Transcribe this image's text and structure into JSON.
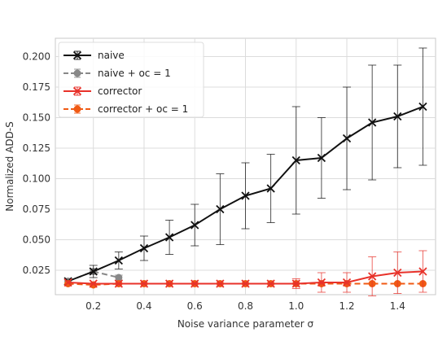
{
  "chart_data": {
    "type": "line",
    "title": "",
    "xlabel": "Noise variance parameter σ",
    "ylabel": "Normalized ADD-S",
    "xlim": [
      0.05,
      1.55
    ],
    "ylim": [
      0.005,
      0.215
    ],
    "xticks": [
      0.2,
      0.4,
      0.6,
      0.8,
      1.0,
      1.2,
      1.4
    ],
    "xtick_labels": [
      "0.2",
      "0.4",
      "0.6",
      "0.8",
      "1.0",
      "1.2",
      "1.4"
    ],
    "yticks": [
      0.025,
      0.05,
      0.075,
      0.1,
      0.125,
      0.15,
      0.175,
      0.2
    ],
    "ytick_labels": [
      "0.025",
      "0.050",
      "0.075",
      "0.100",
      "0.125",
      "0.150",
      "0.175",
      "0.200"
    ],
    "grid": true,
    "legend_position": "top-left",
    "series": [
      {
        "name": "naive",
        "color": "#111111",
        "linestyle": "solid",
        "marker": "x",
        "x": [
          0.1,
          0.2,
          0.3,
          0.4,
          0.5,
          0.6,
          0.7,
          0.8,
          0.9,
          1.0,
          1.1,
          1.2,
          1.3,
          1.4,
          1.5
        ],
        "y": [
          0.016,
          0.024,
          0.033,
          0.043,
          0.052,
          0.062,
          0.075,
          0.086,
          0.092,
          0.115,
          0.117,
          0.133,
          0.146,
          0.151,
          0.159
        ],
        "err": [
          0.0,
          0.005,
          0.007,
          0.01,
          0.014,
          0.017,
          0.029,
          0.027,
          0.028,
          0.044,
          0.033,
          0.042,
          0.047,
          0.042,
          0.048
        ]
      },
      {
        "name": "naive + oc = 1",
        "color": "#888888",
        "linestyle": "dashed",
        "marker": "o",
        "x": [
          0.1,
          0.2,
          0.3
        ],
        "y": [
          0.016,
          0.024,
          0.019
        ],
        "err": [
          0.0,
          0.002,
          0.002
        ]
      },
      {
        "name": "corrector",
        "color": "#e8322a",
        "linestyle": "solid",
        "marker": "x",
        "x": [
          0.1,
          0.2,
          0.3,
          0.4,
          0.5,
          0.6,
          0.7,
          0.8,
          0.9,
          1.0,
          1.1,
          1.2,
          1.3,
          1.4,
          1.5
        ],
        "y": [
          0.015,
          0.014,
          0.014,
          0.014,
          0.014,
          0.014,
          0.014,
          0.014,
          0.014,
          0.014,
          0.015,
          0.015,
          0.02,
          0.023,
          0.024
        ],
        "err": [
          0.0,
          0.0,
          0.0,
          0.0,
          0.0,
          0.0,
          0.0,
          0.0,
          0.0,
          0.004,
          0.008,
          0.008,
          0.016,
          0.017,
          0.017
        ]
      },
      {
        "name": "corrector + oc = 1",
        "color": "#f05a14",
        "linestyle": "dashed",
        "marker": "o",
        "x": [
          0.1,
          0.2,
          0.3,
          0.4,
          0.5,
          0.6,
          0.7,
          0.8,
          0.9,
          1.0,
          1.1,
          1.2,
          1.3,
          1.4,
          1.5
        ],
        "y": [
          0.014,
          0.013,
          0.014,
          0.014,
          0.014,
          0.014,
          0.014,
          0.014,
          0.014,
          0.014,
          0.014,
          0.014,
          0.014,
          0.014,
          0.014
        ],
        "err": [
          0.0,
          0.0,
          0.0,
          0.0,
          0.0,
          0.0,
          0.0,
          0.0,
          0.0,
          0.0,
          0.0,
          0.0,
          0.0,
          0.0,
          0.0
        ]
      }
    ]
  }
}
